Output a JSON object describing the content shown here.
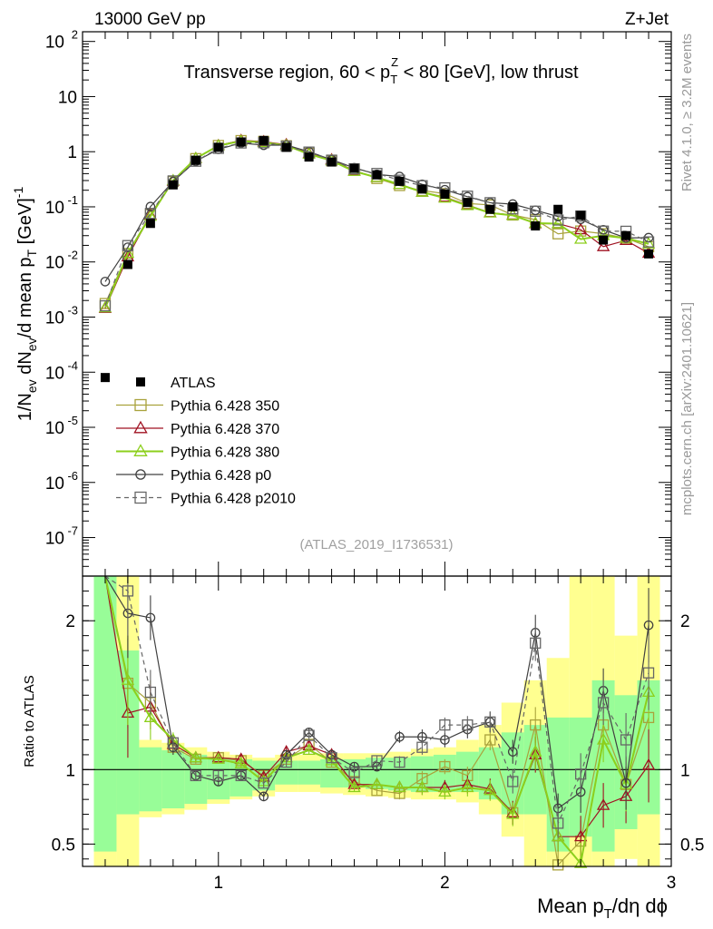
{
  "header": {
    "left": "13000 GeV pp",
    "right": "Z+Jet"
  },
  "side": {
    "rivet": "Rivet 4.1.0, ≥ 3.2M events",
    "mcplots": "mcplots.cern.ch [arXiv:2401.10621]"
  },
  "chart_data": {
    "type": "line",
    "title": "Transverse region, 60 < p_T^Z < 80 [GeV], low thrust",
    "analysis_id": "(ATLAS_2019_I1736531)",
    "ylabel_parts": [
      "1/N",
      "ev",
      " dN",
      "ev",
      "/d mean p",
      "T",
      " [GeV]",
      "-1"
    ],
    "ratio_ylabel": "Ratio to ATLAS",
    "xlabel_parts": [
      "Mean p",
      "T",
      "/dη dϕ"
    ],
    "xlim": [
      0.4,
      3.0
    ],
    "ylim_log": [
      2e-08,
      150
    ],
    "ratio_ylim": [
      0.35,
      2.3
    ],
    "x_ticks": [
      1,
      2,
      3
    ],
    "y_ticks": [
      {
        "v": 1e-07,
        "base": "10",
        "exp": "-7"
      },
      {
        "v": 1e-06,
        "base": "10",
        "exp": "-6"
      },
      {
        "v": 1e-05,
        "base": "10",
        "exp": "-5"
      },
      {
        "v": 0.0001,
        "base": "10",
        "exp": "-4"
      },
      {
        "v": 0.001,
        "base": "10",
        "exp": "-3"
      },
      {
        "v": 0.01,
        "base": "10",
        "exp": "-2"
      },
      {
        "v": 0.1,
        "base": "10",
        "exp": "-1"
      },
      {
        "v": 1,
        "base": "1",
        "exp": ""
      },
      {
        "v": 10,
        "base": "10",
        "exp": ""
      },
      {
        "v": 100,
        "base": "10",
        "exp": "2"
      }
    ],
    "ratio_ticks": [
      0.5,
      1,
      2
    ],
    "x": [
      0.5,
      0.6,
      0.7,
      0.8,
      0.9,
      1.0,
      1.1,
      1.2,
      1.3,
      1.4,
      1.5,
      1.6,
      1.7,
      1.8,
      1.9,
      2.0,
      2.1,
      2.2,
      2.3,
      2.4,
      2.5,
      2.6,
      2.7,
      2.8,
      2.9
    ],
    "data": {
      "name": "ATLAS",
      "values": [
        8e-05,
        0.009,
        0.05,
        0.25,
        0.7,
        1.2,
        1.5,
        1.6,
        1.2,
        0.8,
        0.65,
        0.5,
        0.38,
        0.29,
        0.21,
        0.17,
        0.12,
        0.09,
        0.1,
        0.045,
        0.09,
        0.07,
        0.025,
        0.03,
        0.014
      ]
    },
    "bands": {
      "inner_green": [
        [
          0.45,
          2.3
        ],
        [
          0.7,
          1.8
        ],
        [
          0.72,
          1.15
        ],
        [
          0.74,
          1.13
        ],
        [
          0.77,
          1.1
        ],
        [
          0.8,
          1.08
        ],
        [
          0.82,
          1.07
        ],
        [
          0.86,
          1.06
        ],
        [
          0.9,
          1.06
        ],
        [
          0.9,
          1.06
        ],
        [
          0.88,
          1.07
        ],
        [
          0.88,
          1.07
        ],
        [
          0.87,
          1.08
        ],
        [
          0.86,
          1.08
        ],
        [
          0.85,
          1.09
        ],
        [
          0.85,
          1.1
        ],
        [
          0.85,
          1.12
        ],
        [
          0.8,
          1.15
        ],
        [
          0.7,
          1.25
        ],
        [
          0.7,
          1.3
        ],
        [
          0.45,
          1.35
        ],
        [
          0.55,
          1.35
        ],
        [
          0.45,
          1.6
        ],
        [
          0.6,
          1.5
        ],
        [
          0.7,
          1.6
        ]
      ],
      "outer_yellow": [
        [
          0.35,
          2.3
        ],
        [
          0.35,
          2.3
        ],
        [
          0.68,
          1.2
        ],
        [
          0.7,
          1.18
        ],
        [
          0.73,
          1.15
        ],
        [
          0.77,
          1.12
        ],
        [
          0.8,
          1.1
        ],
        [
          0.82,
          1.08
        ],
        [
          0.85,
          1.1
        ],
        [
          0.85,
          1.1
        ],
        [
          0.84,
          1.11
        ],
        [
          0.83,
          1.11
        ],
        [
          0.82,
          1.11
        ],
        [
          0.81,
          1.12
        ],
        [
          0.8,
          1.14
        ],
        [
          0.8,
          1.15
        ],
        [
          0.78,
          1.2
        ],
        [
          0.7,
          1.3
        ],
        [
          0.55,
          1.45
        ],
        [
          0.35,
          1.6
        ],
        [
          0.35,
          1.75
        ],
        [
          0.35,
          2.3
        ],
        [
          0.35,
          2.3
        ],
        [
          0.4,
          1.9
        ],
        [
          0.35,
          2.3
        ]
      ]
    },
    "series": [
      {
        "name": "Pythia 6.428 350",
        "color": "#a9a23c",
        "marker": "square",
        "dash": false,
        "width": 1.2,
        "ratio": [
          22.0,
          1.58,
          1.45,
          1.15,
          1.07,
          1.08,
          1.06,
          0.96,
          1.07,
          1.17,
          1.05,
          0.92,
          0.86,
          0.84,
          0.94,
          1.02,
          0.96,
          1.2,
          0.71,
          1.3,
          0.36,
          0.52,
          1.3,
          0.9,
          1.35
        ],
        "ratio_err": [
          4.0,
          0.3,
          0.15,
          0.05,
          0.03,
          0.03,
          0.03,
          0.03,
          0.03,
          0.03,
          0.03,
          0.03,
          0.03,
          0.04,
          0.05,
          0.05,
          0.06,
          0.07,
          0.08,
          0.12,
          0.1,
          0.14,
          0.15,
          0.18,
          0.25
        ]
      },
      {
        "name": "Pythia 6.428 370",
        "color": "#a01222",
        "marker": "triangle",
        "dash": false,
        "width": 1.2,
        "ratio": [
          18.0,
          1.38,
          1.42,
          1.17,
          1.08,
          1.08,
          1.07,
          0.95,
          1.12,
          1.16,
          1.1,
          0.9,
          0.9,
          0.88,
          0.88,
          0.88,
          0.9,
          0.87,
          0.71,
          1.1,
          0.55,
          0.55,
          0.76,
          0.82,
          1.03
        ],
        "ratio_err": [
          4.0,
          0.3,
          0.15,
          0.05,
          0.03,
          0.03,
          0.03,
          0.03,
          0.03,
          0.03,
          0.03,
          0.03,
          0.03,
          0.04,
          0.05,
          0.05,
          0.06,
          0.07,
          0.08,
          0.12,
          0.1,
          0.14,
          0.15,
          0.18,
          0.25
        ]
      },
      {
        "name": "Pythia 6.428 380",
        "color": "#8ccf1c",
        "marker": "triangle",
        "dash": false,
        "width": 2.0,
        "ratio": [
          18.5,
          1.6,
          1.35,
          1.2,
          1.08,
          1.07,
          1.04,
          0.92,
          1.08,
          1.13,
          1.06,
          0.88,
          0.9,
          0.88,
          0.88,
          0.85,
          0.88,
          0.86,
          0.7,
          1.12,
          0.55,
          0.37,
          1.2,
          0.9,
          1.52
        ],
        "ratio_err": [
          4.0,
          0.3,
          0.15,
          0.05,
          0.03,
          0.03,
          0.03,
          0.03,
          0.03,
          0.03,
          0.03,
          0.03,
          0.03,
          0.04,
          0.05,
          0.05,
          0.06,
          0.07,
          0.08,
          0.12,
          0.1,
          0.14,
          0.15,
          0.18,
          0.25
        ]
      },
      {
        "name": "Pythia 6.428 p0",
        "color": "#404040",
        "marker": "circle",
        "dash": false,
        "width": 1.2,
        "ratio": [
          55.0,
          2.05,
          2.02,
          1.15,
          0.96,
          0.92,
          0.96,
          0.82,
          1.1,
          1.25,
          1.1,
          1.02,
          1.02,
          1.22,
          1.22,
          1.2,
          1.27,
          1.32,
          1.12,
          1.92,
          0.74,
          0.85,
          1.53,
          0.91,
          1.97
        ],
        "ratio_err": [
          8.0,
          0.3,
          0.15,
          0.05,
          0.03,
          0.03,
          0.03,
          0.03,
          0.03,
          0.03,
          0.03,
          0.03,
          0.03,
          0.04,
          0.05,
          0.05,
          0.06,
          0.07,
          0.08,
          0.12,
          0.1,
          0.14,
          0.15,
          0.18,
          0.25
        ]
      },
      {
        "name": "Pythia 6.428 p2010",
        "color": "#666666",
        "marker": "square",
        "dash": true,
        "width": 1.2,
        "ratio": [
          20.0,
          2.2,
          1.52,
          1.18,
          0.96,
          0.96,
          0.96,
          0.91,
          1.05,
          1.23,
          1.08,
          0.98,
          1.06,
          1.05,
          1.15,
          1.3,
          1.3,
          1.32,
          0.92,
          1.85,
          0.64,
          0.97,
          1.45,
          1.2,
          1.65
        ],
        "ratio_err": [
          4.0,
          0.3,
          0.15,
          0.05,
          0.03,
          0.03,
          0.03,
          0.03,
          0.03,
          0.03,
          0.03,
          0.03,
          0.03,
          0.04,
          0.05,
          0.05,
          0.06,
          0.07,
          0.08,
          0.12,
          0.1,
          0.14,
          0.15,
          0.18,
          0.25
        ]
      }
    ]
  }
}
